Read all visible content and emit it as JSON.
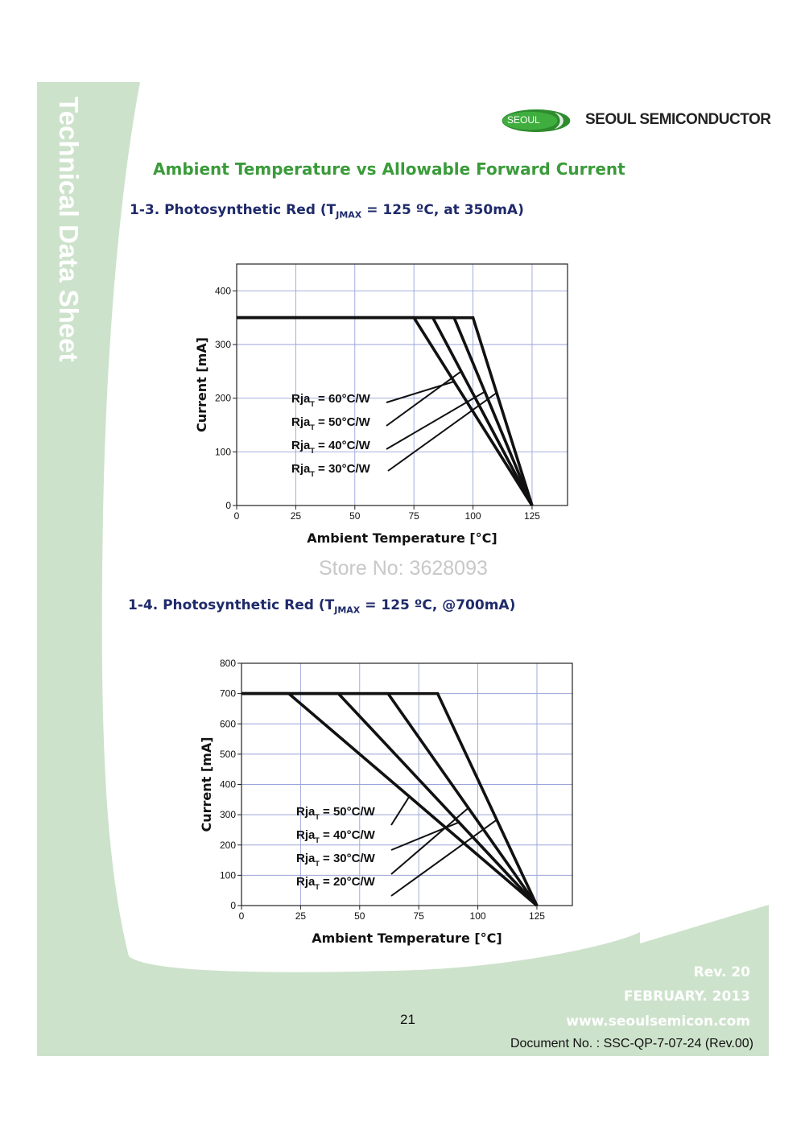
{
  "sidebar": {
    "title": "Technical Data Sheet"
  },
  "header": {
    "logo_badge": "SEOUL",
    "company": "SEOUL SEMICONDUCTOR"
  },
  "main_title": "Ambient Temperature vs Allowable Forward Current",
  "sections": [
    {
      "prefix": "1-3. Photosynthetic Red (T",
      "sub": "JMAX",
      "suffix": " = 125 ºC, at 350mA)"
    },
    {
      "prefix": "1-4. Photosynthetic Red  (T",
      "sub": "JMAX",
      "suffix": " = 125 ºC, @700mA)"
    }
  ],
  "watermark": "Store No: 3628093",
  "footer": {
    "rev": "Rev. 20",
    "date": "FEBRUARY. 2013",
    "website": "www.seoulsemicon.com",
    "page_number": "21",
    "document_no": "Document No. : SSC-QP-7-07-24 (Rev.00)"
  },
  "colors": {
    "accent_green": "#3a9b3a",
    "sidebar_green": "#cde2cb",
    "title_navy": "#1f2a6b",
    "grid": "#9aa3d8"
  },
  "chart_data": [
    {
      "type": "line",
      "title": "1-3. Photosynthetic Red (TJMAX = 125 ºC, at 350mA)",
      "xlabel": "Ambient Temperature [°C]",
      "ylabel": "Current [mA]",
      "xlim": [
        0,
        140
      ],
      "ylim": [
        0,
        450
      ],
      "xticks": [
        0,
        25,
        50,
        75,
        100,
        125
      ],
      "yticks": [
        0,
        100,
        200,
        300,
        400
      ],
      "grid": true,
      "series": [
        {
          "name": "RjaT = 60°C/W",
          "label_main": "Rja",
          "label_sub": "T",
          "label_rest": " = 60°C/W",
          "x": [
            0,
            75,
            125
          ],
          "y": [
            350,
            350,
            0
          ],
          "pointer_x": 92
        },
        {
          "name": "RjaT = 50°C/W",
          "label_main": "Rja",
          "label_sub": "T",
          "label_rest": " = 50°C/W",
          "x": [
            0,
            83,
            125
          ],
          "y": [
            350,
            350,
            0
          ],
          "pointer_x": 95
        },
        {
          "name": "RjaT = 40°C/W",
          "label_main": "Rja",
          "label_sub": "T",
          "label_rest": " = 40°C/W",
          "x": [
            0,
            92,
            125
          ],
          "y": [
            350,
            350,
            0
          ],
          "pointer_x": 105
        },
        {
          "name": "RjaT = 30°C/W",
          "label_main": "Rja",
          "label_sub": "T",
          "label_rest": " = 30°C/W",
          "x": [
            0,
            100,
            125
          ],
          "y": [
            350,
            350,
            0
          ],
          "pointer_x": 110
        }
      ]
    },
    {
      "type": "line",
      "title": "1-4. Photosynthetic Red (TJMAX = 125 ºC, @700mA)",
      "xlabel": "Ambient Temperature [°C]",
      "ylabel": "Current [mA]",
      "xlim": [
        0,
        140
      ],
      "ylim": [
        0,
        800
      ],
      "xticks": [
        0,
        25,
        50,
        75,
        100,
        125
      ],
      "yticks": [
        0,
        100,
        200,
        300,
        400,
        500,
        600,
        700,
        800
      ],
      "grid": true,
      "series": [
        {
          "name": "RjaT = 50°C/W",
          "label_main": "Rja",
          "label_sub": "T",
          "label_rest": " = 50°C/W",
          "x": [
            0,
            20,
            125
          ],
          "y": [
            700,
            700,
            0
          ],
          "pointer_x": 71
        },
        {
          "name": "RjaT = 40°C/W",
          "label_main": "Rja",
          "label_sub": "T",
          "label_rest": " = 40°C/W",
          "x": [
            0,
            41,
            125
          ],
          "y": [
            700,
            700,
            0
          ],
          "pointer_x": 92
        },
        {
          "name": "RjaT = 30°C/W",
          "label_main": "Rja",
          "label_sub": "T",
          "label_rest": " = 30°C/W",
          "x": [
            0,
            62,
            125
          ],
          "y": [
            700,
            700,
            0
          ],
          "pointer_x": 96
        },
        {
          "name": "RjaT = 20°C/W",
          "label_main": "Rja",
          "label_sub": "T",
          "label_rest": " = 20°C/W",
          "x": [
            0,
            83,
            125
          ],
          "y": [
            700,
            700,
            0
          ],
          "pointer_x": 108
        }
      ]
    }
  ]
}
